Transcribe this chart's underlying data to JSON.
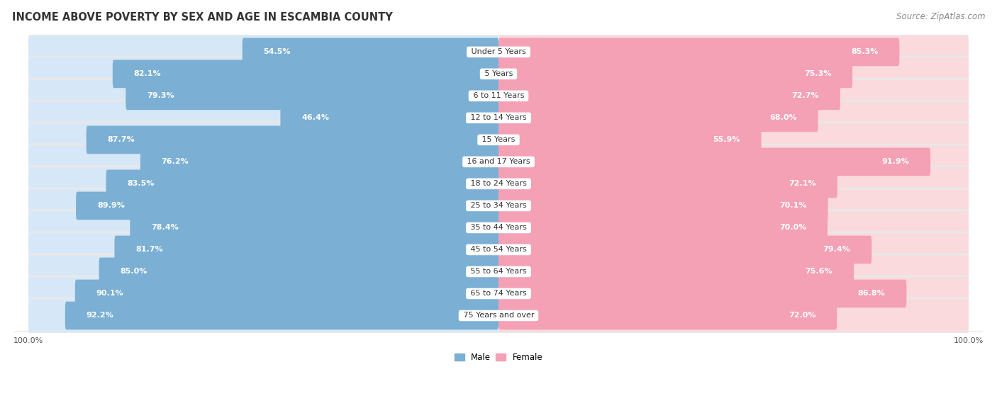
{
  "title": "INCOME ABOVE POVERTY BY SEX AND AGE IN ESCAMBIA COUNTY",
  "source": "Source: ZipAtlas.com",
  "categories": [
    "Under 5 Years",
    "5 Years",
    "6 to 11 Years",
    "12 to 14 Years",
    "15 Years",
    "16 and 17 Years",
    "18 to 24 Years",
    "25 to 34 Years",
    "35 to 44 Years",
    "45 to 54 Years",
    "55 to 64 Years",
    "65 to 74 Years",
    "75 Years and over"
  ],
  "male_values": [
    54.5,
    82.1,
    79.3,
    46.4,
    87.7,
    76.2,
    83.5,
    89.9,
    78.4,
    81.7,
    85.0,
    90.1,
    92.2
  ],
  "female_values": [
    85.3,
    75.3,
    72.7,
    68.0,
    55.9,
    91.9,
    72.1,
    70.1,
    70.0,
    79.4,
    75.6,
    86.8,
    72.0
  ],
  "male_color": "#7BAFD4",
  "female_color": "#F4A0B5",
  "male_label": "Male",
  "female_label": "Female",
  "row_bg_color": "#e8e8e8",
  "bar_background_male": "#d6e8f7",
  "bar_background_female": "#fadadd",
  "title_fontsize": 10.5,
  "source_fontsize": 8.5,
  "label_fontsize": 8.0,
  "category_fontsize": 8.0,
  "tick_fontsize": 8.0,
  "outside_label_color": "#666666"
}
